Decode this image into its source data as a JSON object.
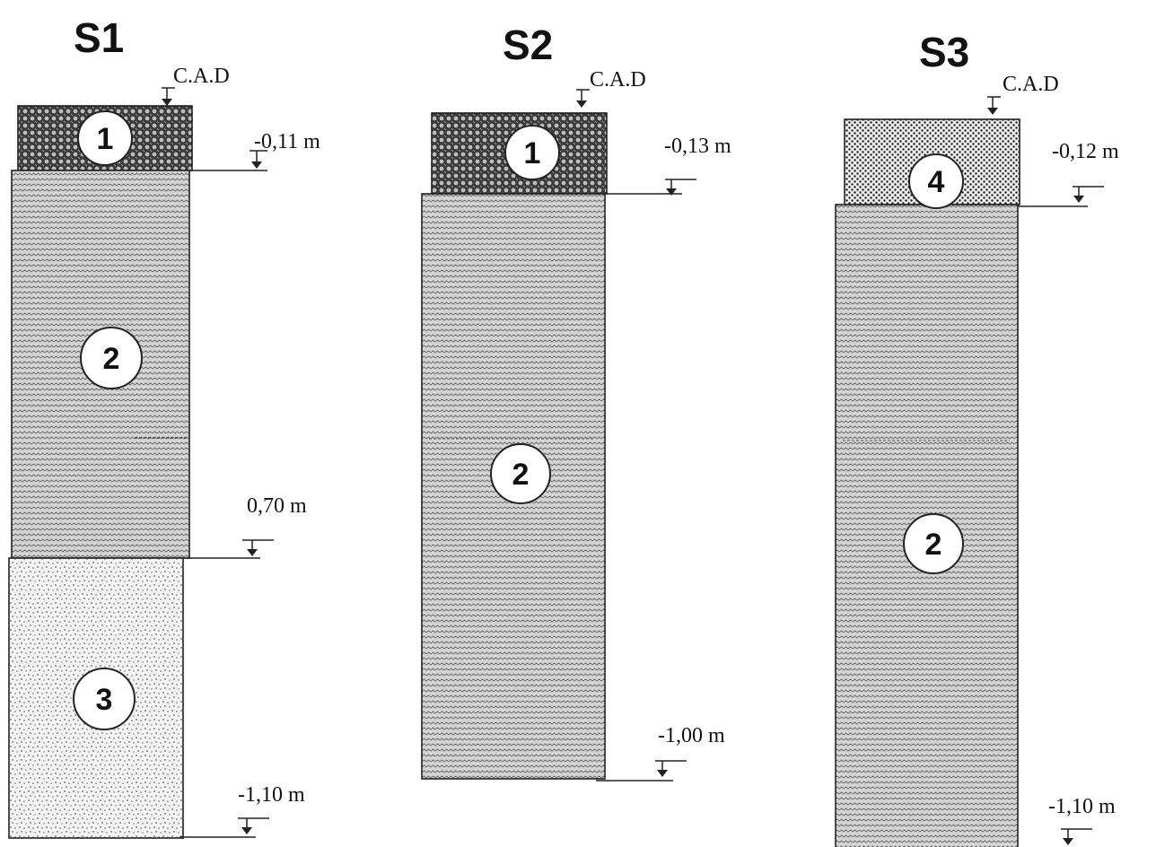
{
  "sondages": [
    {
      "title": "S1",
      "cad_label": "C.A.D",
      "layers": [
        {
          "id": "1",
          "kind": "gravel"
        },
        {
          "id": "2",
          "kind": "clay"
        },
        {
          "id": "3",
          "kind": "sand"
        }
      ],
      "depth_labels": [
        "-0,11 m",
        "0,70 m",
        "-1,10 m"
      ]
    },
    {
      "title": "S2",
      "cad_label": "C.A.D",
      "layers": [
        {
          "id": "1",
          "kind": "gravel"
        },
        {
          "id": "2",
          "kind": "clay"
        }
      ],
      "depth_labels": [
        "-0,13 m",
        "-1,00 m"
      ]
    },
    {
      "title": "S3",
      "cad_label": "C.A.D",
      "layers": [
        {
          "id": "4",
          "kind": "fine-gravel"
        },
        {
          "id": "2",
          "kind": "clay"
        }
      ],
      "depth_labels": [
        "-0,12 m",
        "-1,10 m"
      ]
    }
  ]
}
